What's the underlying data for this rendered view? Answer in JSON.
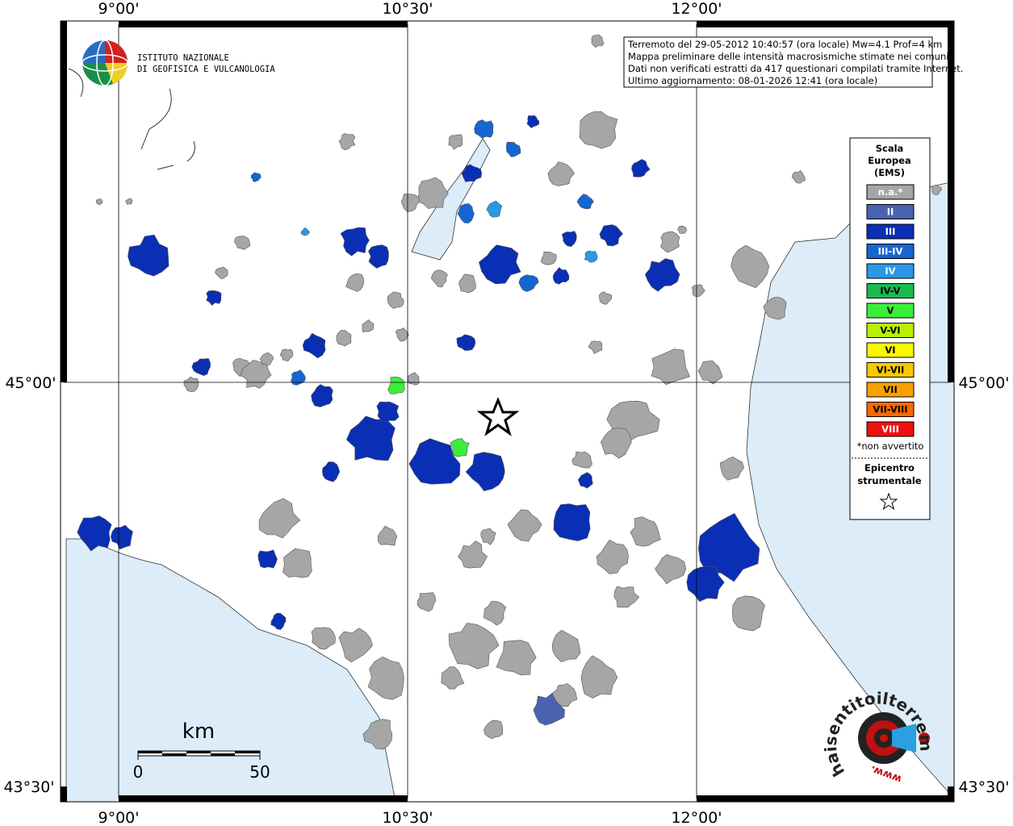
{
  "axis_labels": {
    "top": [
      "9°00'",
      "10°30'",
      "12°00'"
    ],
    "bottom": [
      "9°00'",
      "10°30'",
      "12°00'"
    ],
    "left": [
      "45°00'",
      "43°30'"
    ],
    "right": [
      "45°00'",
      "43°30'"
    ]
  },
  "logo": {
    "line1": "ISTITUTO NAZIONALE",
    "line2": "DI GEOFISICA E VULCANOLOGIA"
  },
  "info_box": {
    "lines": [
      "Terremoto del 29-05-2012 10:40:57 (ora locale) Mw=4.1 Prof=4 km",
      "Mappa preliminare delle intensità macrosismiche stimate nei comuni",
      "Dati non verificati estratti da 417 questionari compilati tramite Internet.",
      "Ultimo aggiornamento: 08-01-2026 12:41 (ora locale)"
    ]
  },
  "legend": {
    "title": [
      "Scala",
      "Europea",
      "(EMS)"
    ],
    "items": [
      {
        "label": "n.a.*",
        "color": "#a6a6a6"
      },
      {
        "label": "II",
        "color": "#4a63b0"
      },
      {
        "label": "III",
        "color": "#0a2fb4"
      },
      {
        "label": "III-IV",
        "color": "#1466d2"
      },
      {
        "label": "IV",
        "color": "#2a98e4"
      },
      {
        "label": "IV-V",
        "color": "#1cb850"
      },
      {
        "label": "V",
        "color": "#3cee3c"
      },
      {
        "label": "V-VI",
        "color": "#b8f000"
      },
      {
        "label": "VI",
        "color": "#f8f800"
      },
      {
        "label": "VI-VII",
        "color": "#f8c800"
      },
      {
        "label": "VII",
        "color": "#f8a000"
      },
      {
        "label": "VII-VIII",
        "color": "#f86a00"
      },
      {
        "label": "VIII",
        "color": "#f01010"
      }
    ],
    "note": "*non avvertito",
    "epicenter": [
      "Epicentro",
      "strumentale"
    ]
  },
  "scale_bar": {
    "unit": "km",
    "labels": [
      "0",
      "50"
    ]
  },
  "watermark": {
    "site": "haisentitoilterremoto.it",
    "prefix": "www."
  }
}
